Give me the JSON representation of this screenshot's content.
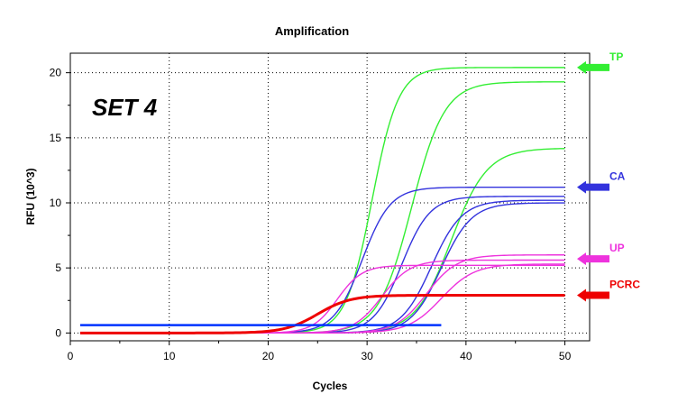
{
  "chart_data": {
    "type": "line",
    "title": "Amplification",
    "xlabel": "Cycles",
    "ylabel": "RFU (10^3)",
    "xlim": [
      0,
      52.5
    ],
    "ylim": [
      -0.6,
      21.5
    ],
    "xticks": [
      0,
      10,
      20,
      30,
      40,
      50
    ],
    "yticks": [
      0,
      5,
      10,
      15,
      20
    ],
    "grid": true,
    "inset_label": "SET 4",
    "colors": {
      "TP": "#33ee33",
      "CA": "#3333dd",
      "UP": "#ee33dd",
      "PCRC": "#ee0000",
      "baseline": "#0033ff"
    },
    "annotations": [
      {
        "label": "TP",
        "y": 20.4,
        "color": "#33ee33"
      },
      {
        "label": "CA",
        "y": 11.2,
        "color": "#3333dd"
      },
      {
        "label": "UP",
        "y": 5.7,
        "color": "#ee33dd"
      },
      {
        "label": "PCRC",
        "y": 2.9,
        "color": "#ee0000"
      }
    ],
    "series": [
      {
        "group": "TP",
        "plateau": 20.4,
        "ct": 30.5,
        "k": 0.75,
        "x_start": 1,
        "x_end": 50
      },
      {
        "group": "TP",
        "plateau": 19.3,
        "ct": 34.5,
        "k": 0.6,
        "x_start": 1,
        "x_end": 50
      },
      {
        "group": "TP",
        "plateau": 14.2,
        "ct": 38.5,
        "k": 0.55,
        "x_start": 1,
        "x_end": 50
      },
      {
        "group": "CA",
        "plateau": 11.2,
        "ct": 29.5,
        "k": 0.7,
        "x_start": 1,
        "x_end": 50
      },
      {
        "group": "CA",
        "plateau": 10.5,
        "ct": 33.5,
        "k": 0.7,
        "x_start": 1,
        "x_end": 50
      },
      {
        "group": "CA",
        "plateau": 10.0,
        "ct": 37.5,
        "k": 0.65,
        "x_start": 1,
        "x_end": 50
      },
      {
        "group": "CA",
        "plateau": 10.2,
        "ct": 36.5,
        "k": 0.65,
        "x_start": 1,
        "x_end": 50
      },
      {
        "group": "UP",
        "plateau": 5.2,
        "ct": 27.0,
        "k": 0.8,
        "x_start": 1,
        "x_end": 50
      },
      {
        "group": "UP",
        "plateau": 5.6,
        "ct": 31.5,
        "k": 0.7,
        "x_start": 1,
        "x_end": 50
      },
      {
        "group": "UP",
        "plateau": 6.0,
        "ct": 36.0,
        "k": 0.65,
        "x_start": 1,
        "x_end": 50
      },
      {
        "group": "UP",
        "plateau": 5.3,
        "ct": 37.5,
        "k": 0.6,
        "x_start": 1,
        "x_end": 50
      },
      {
        "group": "PCRC",
        "plateau": 2.9,
        "ct": 25.0,
        "k": 0.6,
        "x_start": 1,
        "x_end": 50,
        "width": 3
      },
      {
        "group": "baseline",
        "constant": 0.6,
        "x_start": 1,
        "x_end": 37.5,
        "width": 2.5
      }
    ]
  }
}
